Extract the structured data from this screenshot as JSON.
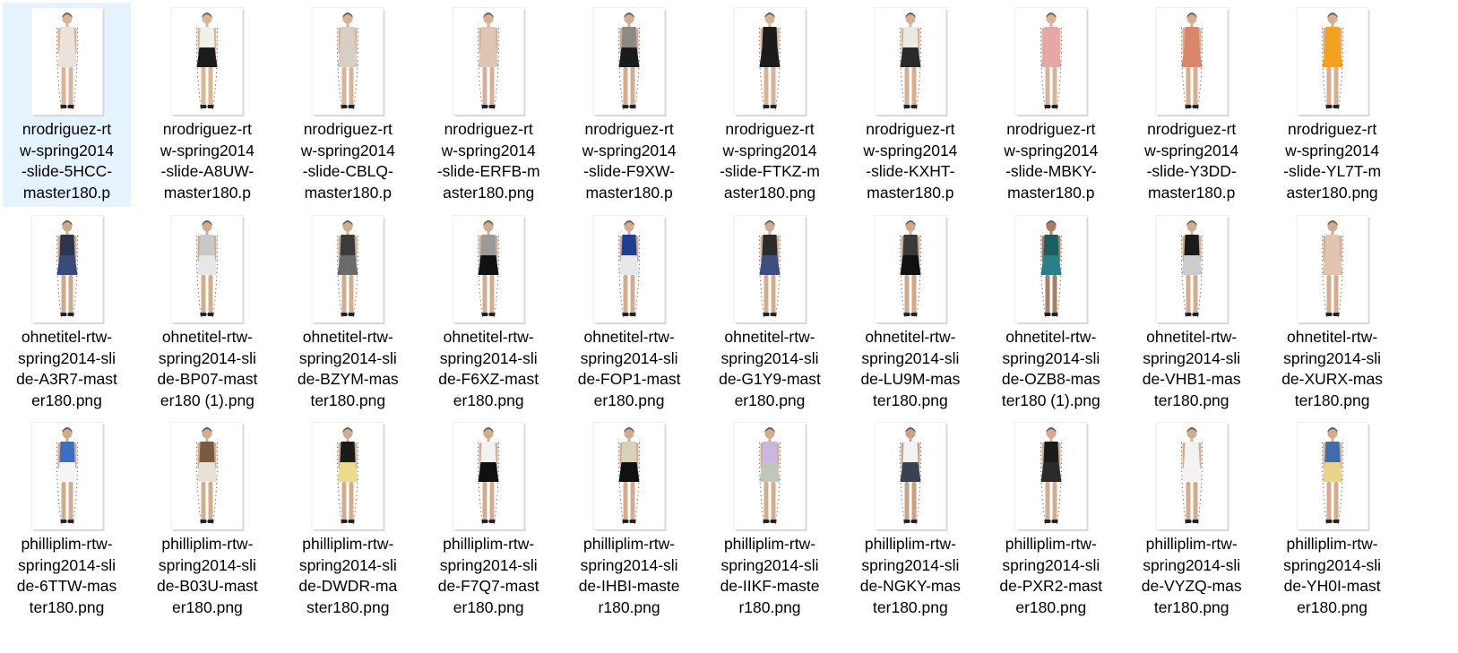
{
  "rows": [
    {
      "items": [
        {
          "lines": [
            "nrodriguez-rt",
            "w-spring2014",
            "-slide-5HCC-",
            "master180.p"
          ],
          "top": "#e9e3da",
          "bottom": "#e9e3da",
          "skin": "#d8b49a",
          "selected": true
        },
        {
          "lines": [
            "nrodriguez-rt",
            "w-spring2014",
            "-slide-A8UW-",
            "master180.p"
          ],
          "top": "#f1efe9",
          "bottom": "#1b1b1b",
          "skin": "#d9b59a",
          "selected": false
        },
        {
          "lines": [
            "nrodriguez-rt",
            "w-spring2014",
            "-slide-CBLQ-",
            "master180.p"
          ],
          "top": "#d6cfc4",
          "bottom": "#d6cfc4",
          "skin": "#d7b397",
          "selected": false
        },
        {
          "lines": [
            "nrodriguez-rt",
            "w-spring2014",
            "-slide-ERFB-m",
            "aster180.png"
          ],
          "top": "#ddc7b3",
          "bottom": "#ddc7b3",
          "skin": "#d6b096",
          "selected": false
        },
        {
          "lines": [
            "nrodriguez-rt",
            "w-spring2014",
            "-slide-F9XW-",
            "master180.p"
          ],
          "top": "#8d8a83",
          "bottom": "#1b1b1b",
          "skin": "#d3ad92",
          "selected": false
        },
        {
          "lines": [
            "nrodriguez-rt",
            "w-spring2014",
            "-slide-FTKZ-m",
            "aster180.png"
          ],
          "top": "#1b1b1b",
          "bottom": "#1b1b1b",
          "skin": "#d7b296",
          "selected": false
        },
        {
          "lines": [
            "nrodriguez-rt",
            "w-spring2014",
            "-slide-KXHT-",
            "master180.p"
          ],
          "top": "#ece9e4",
          "bottom": "#2a2a2a",
          "skin": "#d6b095",
          "selected": false
        },
        {
          "lines": [
            "nrodriguez-rt",
            "w-spring2014",
            "-slide-MBKY-",
            "master180.p"
          ],
          "top": "#e7a7a9",
          "bottom": "#e7a7a9",
          "skin": "#d9b398",
          "selected": false
        },
        {
          "lines": [
            "nrodriguez-rt",
            "w-spring2014",
            "-slide-Y3DD-",
            "master180.p"
          ],
          "top": "#d9876a",
          "bottom": "#d9876a",
          "skin": "#d6ae92",
          "selected": false
        },
        {
          "lines": [
            "nrodriguez-rt",
            "w-spring2014",
            "-slide-YL7T-m",
            "aster180.png"
          ],
          "top": "#f2a21f",
          "bottom": "#f2a21f",
          "skin": "#d6ae92",
          "selected": false
        }
      ]
    },
    {
      "items": [
        {
          "lines": [
            "ohnetitel-rtw-",
            "spring2014-sli",
            "de-A3R7-mast",
            "er180.png"
          ],
          "top": "#2d3550",
          "bottom": "#3c4a7a",
          "skin": "#cfa98e",
          "selected": false
        },
        {
          "lines": [
            "ohnetitel-rtw-",
            "spring2014-sli",
            "de-BP07-mast",
            "er180 (1).png"
          ],
          "top": "#c9c9cc",
          "bottom": "#e7e7ea",
          "skin": "#d2ac91",
          "selected": false
        },
        {
          "lines": [
            "ohnetitel-rtw-",
            "spring2014-sli",
            "de-BZYM-mas",
            "ter180.png"
          ],
          "top": "#3b3b3b",
          "bottom": "#6b6b6b",
          "skin": "#d2ac91",
          "selected": false
        },
        {
          "lines": [
            "ohnetitel-rtw-",
            "spring2014-sli",
            "de-F6XZ-mast",
            "er180.png"
          ],
          "top": "#9a9a9a",
          "bottom": "#111111",
          "skin": "#d2ac91",
          "selected": false
        },
        {
          "lines": [
            "ohnetitel-rtw-",
            "spring2014-sli",
            "de-FOP1-mast",
            "er180.png"
          ],
          "top": "#1f3f8f",
          "bottom": "#e8e8e8",
          "skin": "#d2ac91",
          "selected": false
        },
        {
          "lines": [
            "ohnetitel-rtw-",
            "spring2014-sli",
            "de-G1Y9-mast",
            "er180.png"
          ],
          "top": "#2b2b2b",
          "bottom": "#3d4f80",
          "skin": "#d2ac91",
          "selected": false
        },
        {
          "lines": [
            "ohnetitel-rtw-",
            "spring2014-sli",
            "de-LU9M-mas",
            "ter180.png"
          ],
          "top": "#3a3a3a",
          "bottom": "#111111",
          "skin": "#cfa98e",
          "selected": false
        },
        {
          "lines": [
            "ohnetitel-rtw-",
            "spring2014-sli",
            "de-OZB8-mas",
            "ter180 (1).png"
          ],
          "top": "#1c5e61",
          "bottom": "#2a7e8a",
          "skin": "#a67f66",
          "selected": false
        },
        {
          "lines": [
            "ohnetitel-rtw-",
            "spring2014-sli",
            "de-VHB1-mas",
            "ter180.png"
          ],
          "top": "#1b1b1b",
          "bottom": "#cccccc",
          "skin": "#d2ac91",
          "selected": false
        },
        {
          "lines": [
            "ohnetitel-rtw-",
            "spring2014-sli",
            "de-XURX-mas",
            "ter180.png"
          ],
          "top": "#e2c5b1",
          "bottom": "#e2c5b1",
          "skin": "#d2ac91",
          "selected": false
        }
      ]
    },
    {
      "items": [
        {
          "lines": [
            "philliplim-rtw-",
            "spring2014-sli",
            "de-6TTW-mas",
            "ter180.png"
          ],
          "top": "#3c6fc3",
          "bottom": "#f5f5f5",
          "skin": "#d2ac91",
          "selected": false
        },
        {
          "lines": [
            "philliplim-rtw-",
            "spring2014-sli",
            "de-B03U-mast",
            "er180.png"
          ],
          "top": "#7a5a42",
          "bottom": "#e7e2d8",
          "skin": "#d2ac91",
          "selected": false
        },
        {
          "lines": [
            "philliplim-rtw-",
            "spring2014-sli",
            "de-DWDR-ma",
            "ster180.png"
          ],
          "top": "#1b1b1b",
          "bottom": "#e9dc8f",
          "skin": "#d2ac91",
          "selected": false
        },
        {
          "lines": [
            "philliplim-rtw-",
            "spring2014-sli",
            "de-F7Q7-mast",
            "er180.png"
          ],
          "top": "#f2f2f2",
          "bottom": "#111111",
          "skin": "#d2ac91",
          "selected": false
        },
        {
          "lines": [
            "philliplim-rtw-",
            "spring2014-sli",
            "de-IHBI-maste",
            "r180.png"
          ],
          "top": "#d8d3b8",
          "bottom": "#111111",
          "skin": "#d2ac91",
          "selected": false
        },
        {
          "lines": [
            "philliplim-rtw-",
            "spring2014-sli",
            "de-IIKF-maste",
            "r180.png"
          ],
          "top": "#c9b6e3",
          "bottom": "#bfc7b9",
          "skin": "#d2ac91",
          "selected": false
        },
        {
          "lines": [
            "philliplim-rtw-",
            "spring2014-sli",
            "de-NGKY-mas",
            "ter180.png"
          ],
          "top": "#f2f2f2",
          "bottom": "#3b4150",
          "skin": "#c9a184",
          "selected": false
        },
        {
          "lines": [
            "philliplim-rtw-",
            "spring2014-sli",
            "de-PXR2-mast",
            "er180.png"
          ],
          "top": "#1b1b1b",
          "bottom": "#2b2b2b",
          "skin": "#d2ac91",
          "selected": false
        },
        {
          "lines": [
            "philliplim-rtw-",
            "spring2014-sli",
            "de-VYZQ-mas",
            "ter180.png"
          ],
          "top": "#f3f3f3",
          "bottom": "#f3f3f3",
          "skin": "#d2ac91",
          "selected": false
        },
        {
          "lines": [
            "philliplim-rtw-",
            "spring2014-sli",
            "de-YH0I-mast",
            "er180.png"
          ],
          "top": "#3f6bb0",
          "bottom": "#e8d38a",
          "skin": "#d2ac91",
          "selected": false
        }
      ]
    }
  ]
}
